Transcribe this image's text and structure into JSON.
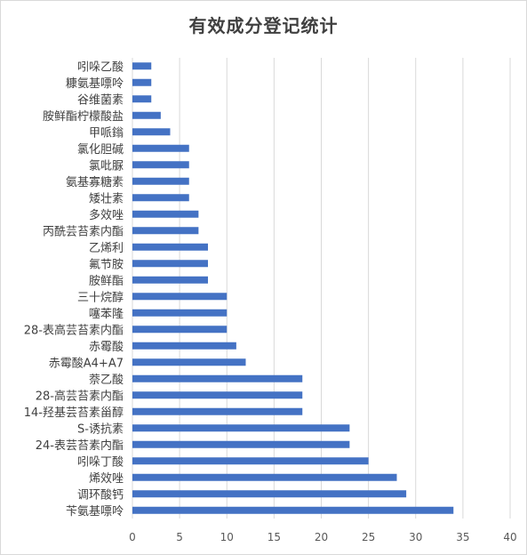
{
  "chart_data": {
    "type": "bar",
    "orientation": "horizontal",
    "title": "有效成分登记统计",
    "xlabel": "",
    "ylabel": "",
    "xlim": [
      0,
      40
    ],
    "x_ticks": [
      "0",
      "5",
      "10",
      "15",
      "20",
      "25",
      "30",
      "35",
      "40"
    ],
    "grid": true,
    "legend": "none",
    "bar_color": "#4472C4",
    "categories": [
      "苄氨基嘌呤",
      "调环酸钙",
      "烯效唑",
      "吲哚丁酸",
      "24-表芸苔素内酯",
      "S-诱抗素",
      "14-羟基芸苔素甾醇",
      "28-高芸苔素内酯",
      "萘乙酸",
      "赤霉酸A4+A7",
      "赤霉酸",
      "28-表高芸苔素内酯",
      "噻苯隆",
      "三十烷醇",
      "胺鲜酯",
      "氟节胺",
      "乙烯利",
      "丙酰芸苔素内酯",
      "多效唑",
      "矮壮素",
      "氨基寡糖素",
      "氯吡脲",
      "氯化胆碱",
      "甲哌鎓",
      "胺鲜酯柠檬酸盐",
      "谷维菌素",
      "糠氨基嘌呤",
      "吲哚乙酸"
    ],
    "values": [
      34,
      29,
      28,
      25,
      23,
      23,
      18,
      18,
      18,
      12,
      11,
      10,
      10,
      10,
      8,
      8,
      8,
      7,
      7,
      6,
      6,
      6,
      6,
      4,
      3,
      2,
      2,
      2
    ]
  }
}
